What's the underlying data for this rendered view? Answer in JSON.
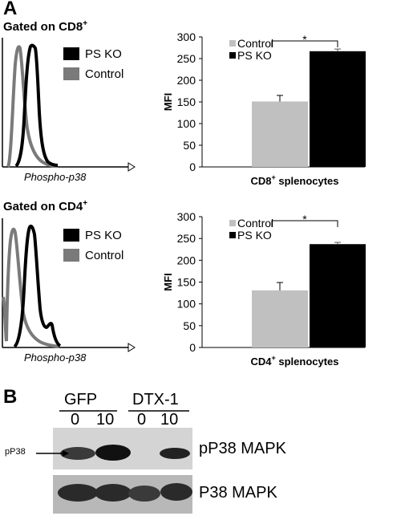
{
  "panel_a": {
    "letter": "A",
    "histograms": [
      {
        "title": "Gated on CD8",
        "sup": "+",
        "xlabel": "Phospho-p38",
        "legend": [
          "PS KO",
          "Control"
        ]
      },
      {
        "title": "Gated on CD4",
        "sup": "+",
        "xlabel": "Phospho-p38",
        "legend": [
          "PS KO",
          "Control"
        ]
      }
    ]
  },
  "chart_data": [
    {
      "type": "bar",
      "ylabel": "MFI",
      "xlabel": "CD8+ splenocytes",
      "xlabel_main": "CD8",
      "xlabel_sup": "+",
      "xlabel_rest": " splenocytes",
      "ylim": [
        0,
        300
      ],
      "yticks": [
        "0",
        "50",
        "100",
        "150",
        "200",
        "250",
        "300"
      ],
      "series": [
        {
          "name": "Control",
          "values": [
            151
          ],
          "error": [
            14
          ],
          "color": "#c0c0c0"
        },
        {
          "name": "PS KO",
          "values": [
            267
          ],
          "error": [
            5
          ],
          "color": "#000000"
        }
      ],
      "significance": "*"
    },
    {
      "type": "bar",
      "ylabel": "MFI",
      "xlabel": "CD4+ splenocytes",
      "xlabel_main": "CD4",
      "xlabel_sup": "+",
      "xlabel_rest": " splenocytes",
      "ylim": [
        0,
        300
      ],
      "yticks": [
        "0",
        "50",
        "100",
        "150",
        "200",
        "250",
        "300"
      ],
      "series": [
        {
          "name": "Control",
          "values": [
            131
          ],
          "error": [
            18
          ],
          "color": "#c0c0c0"
        },
        {
          "name": "PS KO",
          "values": [
            237
          ],
          "error": [
            4
          ],
          "color": "#000000"
        }
      ],
      "significance": "*"
    }
  ],
  "panel_b": {
    "letter": "B",
    "groups": [
      "GFP",
      "DTX-1"
    ],
    "lanes": [
      "0",
      "10",
      "0",
      "10"
    ],
    "arrow_label": "pP38",
    "blots": [
      "pP38 MAPK",
      "P38 MAPK"
    ]
  }
}
